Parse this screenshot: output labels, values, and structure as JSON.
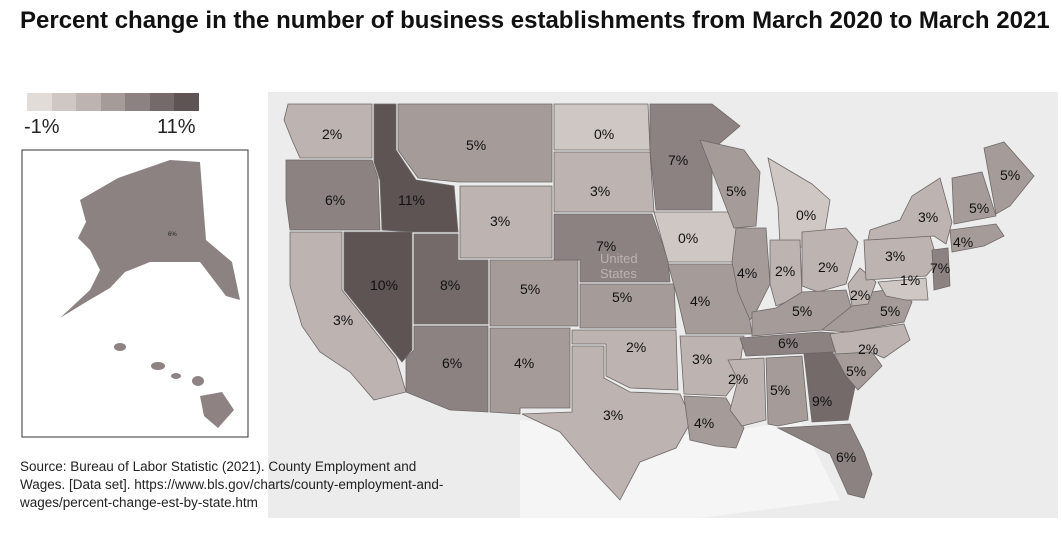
{
  "title": "Percent change in the number of business establishments from March 2020 to March 2021",
  "legend": {
    "min_label": "-1%",
    "max_label": "11%",
    "scale_colors": [
      "#e2dcd8",
      "#cfc7c3",
      "#bdb3b0",
      "#a59c99",
      "#8c8281",
      "#746a6a",
      "#5e5454"
    ]
  },
  "source": "Source: Bureau of Labor Statistic (2021). County Employment and Wages. [Data set]. https://www.bls.gov/charts/county-employment-and-wages/percent-change-est-by-state.htm",
  "map_background_labels": {
    "country_line1": "United",
    "country_line2": "States",
    "alaska_value": "6%"
  },
  "chart_data": {
    "type": "choropleth",
    "units": "percent change",
    "color_range": [
      -1,
      11
    ],
    "states": [
      {
        "state": "WA",
        "label": "2%",
        "value": 2
      },
      {
        "state": "OR",
        "label": "6%",
        "value": 6
      },
      {
        "state": "CA",
        "label": "3%",
        "value": 3
      },
      {
        "state": "NV",
        "label": "10%",
        "value": 10
      },
      {
        "state": "ID",
        "label": "11%",
        "value": 11
      },
      {
        "state": "MT",
        "label": "5%",
        "value": 5
      },
      {
        "state": "WY",
        "label": "3%",
        "value": 3
      },
      {
        "state": "UT",
        "label": "8%",
        "value": 8
      },
      {
        "state": "AZ",
        "label": "6%",
        "value": 6
      },
      {
        "state": "CO",
        "label": "5%",
        "value": 5
      },
      {
        "state": "NM",
        "label": "4%",
        "value": 4
      },
      {
        "state": "ND",
        "label": "0%",
        "value": 0
      },
      {
        "state": "SD",
        "label": "3%",
        "value": 3
      },
      {
        "state": "NE",
        "label": "7%",
        "value": 7
      },
      {
        "state": "KS",
        "label": "5%",
        "value": 5
      },
      {
        "state": "OK",
        "label": "2%",
        "value": 2
      },
      {
        "state": "TX",
        "label": "3%",
        "value": 3
      },
      {
        "state": "MN",
        "label": "7%",
        "value": 7
      },
      {
        "state": "IA",
        "label": "0%",
        "value": 0
      },
      {
        "state": "MO",
        "label": "4%",
        "value": 4
      },
      {
        "state": "AR",
        "label": "3%",
        "value": 3
      },
      {
        "state": "LA",
        "label": "4%",
        "value": 4
      },
      {
        "state": "WI",
        "label": "5%",
        "value": 5
      },
      {
        "state": "IL",
        "label": "4%",
        "value": 4
      },
      {
        "state": "MI",
        "label": "0%",
        "value": 0
      },
      {
        "state": "IN",
        "label": "2%",
        "value": 2
      },
      {
        "state": "OH",
        "label": "2%",
        "value": 2
      },
      {
        "state": "KY",
        "label": "5%",
        "value": 5
      },
      {
        "state": "TN",
        "label": "6%",
        "value": 6
      },
      {
        "state": "MS",
        "label": "2%",
        "value": 2
      },
      {
        "state": "AL",
        "label": "5%",
        "value": 5
      },
      {
        "state": "GA",
        "label": "9%",
        "value": 9
      },
      {
        "state": "FL",
        "label": "6%",
        "value": 6
      },
      {
        "state": "SC",
        "label": "5%",
        "value": 5
      },
      {
        "state": "NC",
        "label": "2%",
        "value": 2
      },
      {
        "state": "VA",
        "label": "5%",
        "value": 5
      },
      {
        "state": "WV",
        "label": "2%",
        "value": 2
      },
      {
        "state": "PA",
        "label": "3%",
        "value": 3
      },
      {
        "state": "NY",
        "label": "3%",
        "value": 3
      },
      {
        "state": "NJ",
        "label": "7%",
        "value": 7
      },
      {
        "state": "DE/MD",
        "label": "1%",
        "value": 1
      },
      {
        "state": "CT/RI/MA",
        "label": "4%",
        "value": 4
      },
      {
        "state": "VT/NH",
        "label": "5%",
        "value": 5
      },
      {
        "state": "ME",
        "label": "5%",
        "value": 5
      }
    ]
  }
}
